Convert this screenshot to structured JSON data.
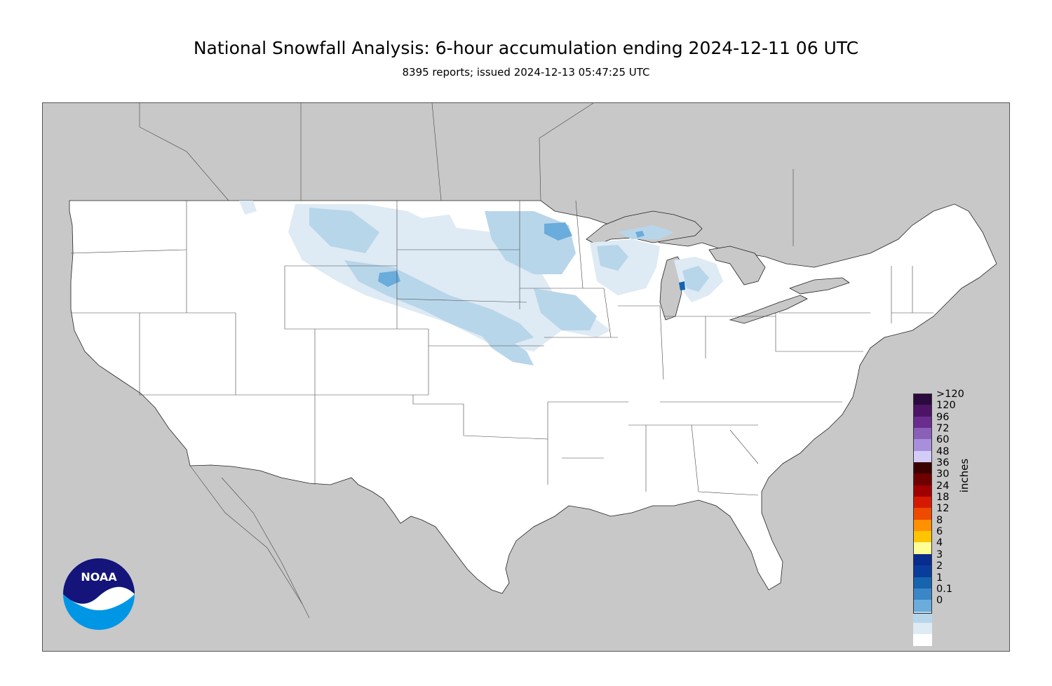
{
  "title": "National Snowfall Analysis: 6-hour accumulation ending 2024-12-11 06 UTC",
  "subtitle": "8395 reports; issued 2024-12-13 05:47:25 UTC",
  "legend": {
    "units": "inches",
    "entries": [
      {
        "label": ">120",
        "color": "#2b0a3d"
      },
      {
        "label": "120",
        "color": "#4d1466"
      },
      {
        "label": "96",
        "color": "#6a2d8f"
      },
      {
        "label": "72",
        "color": "#8a5fb8"
      },
      {
        "label": "60",
        "color": "#a88fdc"
      },
      {
        "label": "48",
        "color": "#d2ccf7"
      },
      {
        "label": "36",
        "color": "#3b0000"
      },
      {
        "label": "30",
        "color": "#6e0000"
      },
      {
        "label": "24",
        "color": "#a00000"
      },
      {
        "label": "18",
        "color": "#d41a00"
      },
      {
        "label": "12",
        "color": "#ee4a00"
      },
      {
        "label": "8",
        "color": "#ff9000"
      },
      {
        "label": "6",
        "color": "#ffc400"
      },
      {
        "label": "4",
        "color": "#ffff96"
      },
      {
        "label": "3",
        "color": "#0a2c8c"
      },
      {
        "label": "2",
        "color": "#083d9c"
      },
      {
        "label": "1",
        "color": "#1663ae"
      },
      {
        "label": "0.1",
        "color": "#3b86c6"
      },
      {
        "label": "0",
        "color": "#6aacdb"
      },
      {
        "label": "",
        "color": "#b8d6ea"
      },
      {
        "label": "",
        "color": "#deeaf4"
      },
      {
        "label": "",
        "color": "#ffffff"
      }
    ]
  },
  "logo": {
    "text": "NOAA",
    "colors": {
      "dark": "#14147a",
      "light": "#0096e6"
    }
  },
  "map": {
    "background": "#c8c8c8",
    "land_color": "#ffffff",
    "snow_light": "#deeaf4",
    "snow_mid": "#b8d6ea",
    "snow_heavy": "#6aacdb",
    "snow_peak": "#1663ae"
  }
}
